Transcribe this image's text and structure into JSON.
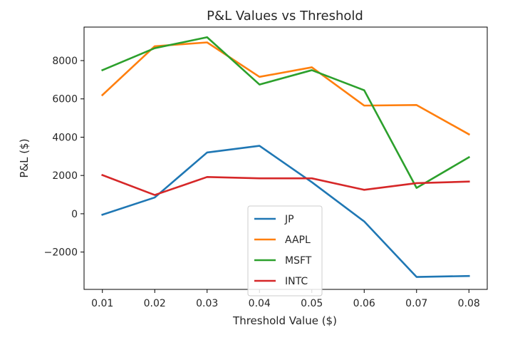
{
  "chart_data": {
    "type": "line",
    "title": "P&L Values vs Threshold",
    "xlabel": "Threshold Value ($)",
    "ylabel": "P&L ($)",
    "x": [
      0.01,
      0.02,
      0.03,
      0.04,
      0.05,
      0.06,
      0.07,
      0.08
    ],
    "x_tick_labels": [
      "0.01",
      "0.02",
      "0.03",
      "0.04",
      "0.05",
      "0.06",
      "0.07",
      "0.08"
    ],
    "y_ticks": [
      -2000,
      0,
      2000,
      4000,
      6000,
      8000
    ],
    "y_tick_labels": [
      "−2000",
      "0",
      "2000",
      "4000",
      "6000",
      "8000"
    ],
    "xlim": [
      0.0065,
      0.0835
    ],
    "ylim": [
      -3950,
      9750
    ],
    "grid": false,
    "legend_position": "lower center",
    "series": [
      {
        "name": "JP",
        "color": "#1f77b4",
        "values": [
          -50,
          850,
          3200,
          3550,
          1650,
          -400,
          -3300,
          -3250
        ]
      },
      {
        "name": "AAPL",
        "color": "#ff7f0e",
        "values": [
          6200,
          8750,
          8950,
          7150,
          7650,
          5650,
          5680,
          4150
        ]
      },
      {
        "name": "MSFT",
        "color": "#2ca02c",
        "values": [
          7500,
          8650,
          9220,
          6750,
          7500,
          6450,
          1350,
          2950
        ]
      },
      {
        "name": "INTC",
        "color": "#d62728",
        "values": [
          2020,
          980,
          1920,
          1850,
          1850,
          1250,
          1600,
          1680
        ]
      }
    ]
  }
}
